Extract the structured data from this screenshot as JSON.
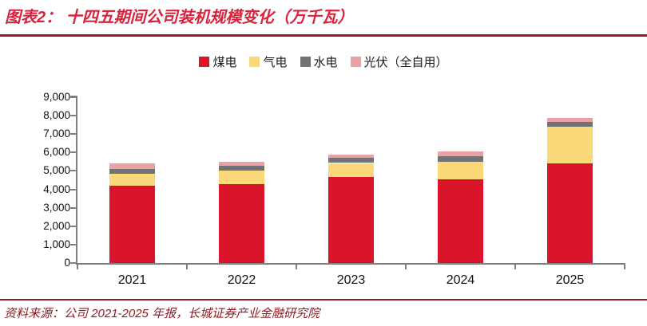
{
  "header": {
    "title": "图表2： 十四五期间公司装机规模变化（万千瓦）"
  },
  "footer": {
    "source": "资料来源：公司 2021-2025 年报，长城证券产业金融研究院"
  },
  "colors": {
    "title": "#D9223C",
    "rule": "#951B20",
    "footer_text": "#8E1B20",
    "axis": "#7F7F7F",
    "coal": "#D9142B",
    "gas": "#FBD879",
    "hydro": "#717276",
    "pv": "#EBA0A5"
  },
  "chart_data": {
    "type": "bar",
    "stacked": true,
    "title": "十四五期间公司装机规模变化（万千瓦）",
    "categories": [
      "2021",
      "2022",
      "2023",
      "2024",
      "2025"
    ],
    "series": [
      {
        "name": "煤电",
        "color": "#D9142B",
        "values": [
          4180,
          4270,
          4660,
          4560,
          5390
        ]
      },
      {
        "name": "气电",
        "color": "#FBD879",
        "values": [
          670,
          770,
          770,
          950,
          2020
        ]
      },
      {
        "name": "水电",
        "color": "#717276",
        "values": [
          250,
          250,
          260,
          290,
          230
        ]
      },
      {
        "name": "光伏（全自用）",
        "color": "#EBA0A5",
        "values": [
          300,
          210,
          210,
          240,
          220
        ]
      }
    ],
    "totals": [
      5400,
      5500,
      5900,
      6040,
      7860
    ],
    "ylim": [
      0,
      9000
    ],
    "ytick_step": 1000,
    "yticklabels": [
      "0",
      "1,000",
      "2,000",
      "3,000",
      "4,000",
      "5,000",
      "6,000",
      "7,000",
      "8,000",
      "9,000"
    ],
    "xlabel": "",
    "ylabel": "",
    "grid": false,
    "legend_position": "top-center"
  }
}
